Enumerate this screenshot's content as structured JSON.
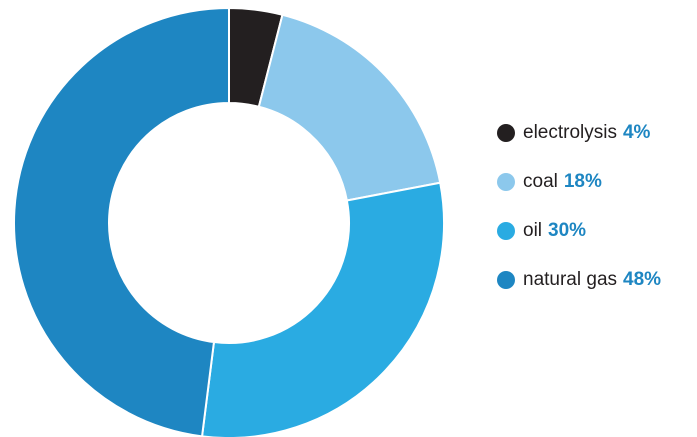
{
  "chart_data": {
    "type": "pie",
    "donut": true,
    "title": "",
    "categories": [
      "electrolysis",
      "coal",
      "oil",
      "natural gas"
    ],
    "values": [
      4,
      18,
      30,
      48
    ],
    "value_labels": [
      "4%",
      "18%",
      "30%",
      "48%"
    ],
    "colors": [
      "#231f20",
      "#8cc8ec",
      "#2aabe2",
      "#1e86c2"
    ],
    "legend_position": "right",
    "start_angle": "top",
    "direction": "clockwise"
  }
}
